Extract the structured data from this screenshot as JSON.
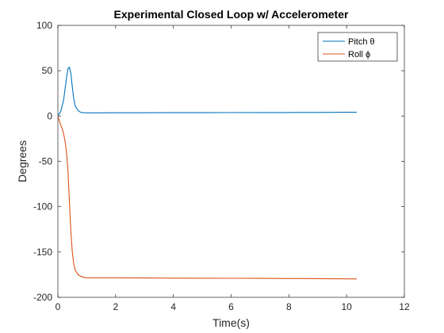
{
  "chart_data": {
    "type": "line",
    "title": "Experimental Closed Loop w/ Accelerometer",
    "xlabel": "Time(s)",
    "ylabel": "Degrees",
    "xlim": [
      0,
      12
    ],
    "ylim": [
      -200,
      100
    ],
    "xticks": [
      0,
      2,
      4,
      6,
      8,
      10,
      12
    ],
    "yticks": [
      100,
      50,
      0,
      -50,
      -100,
      -150,
      -200
    ],
    "grid": false,
    "legend_position": "top-right",
    "series": [
      {
        "name": "Pitch θ",
        "color": "#0072BD",
        "x": [
          0,
          0.1,
          0.2,
          0.3,
          0.35,
          0.4,
          0.45,
          0.5,
          0.55,
          0.6,
          0.7,
          0.8,
          0.9,
          1.0,
          1.5,
          2,
          3,
          4,
          5,
          6,
          7,
          8,
          9,
          10,
          10.35
        ],
        "y": [
          0,
          5,
          18,
          42,
          52,
          54,
          47,
          32,
          19,
          11,
          6,
          4,
          3.6,
          3.5,
          3.5,
          3.6,
          3.6,
          3.7,
          3.7,
          3.8,
          3.9,
          3.9,
          4.0,
          4.1,
          4.1
        ]
      },
      {
        "name": "Roll ϕ",
        "color": "#D95319",
        "x": [
          0,
          0.05,
          0.1,
          0.15,
          0.2,
          0.25,
          0.3,
          0.35,
          0.4,
          0.45,
          0.5,
          0.55,
          0.6,
          0.7,
          0.8,
          0.9,
          1.0,
          1.5,
          2,
          3,
          4,
          5,
          6,
          7,
          8,
          9,
          10,
          10.35
        ],
        "y": [
          0,
          -5,
          -10,
          -14,
          -20,
          -28,
          -40,
          -60,
          -95,
          -128,
          -150,
          -163,
          -170,
          -175,
          -177,
          -178,
          -178.5,
          -178.5,
          -178.5,
          -178.7,
          -178.8,
          -178.9,
          -179.0,
          -179.1,
          -179.3,
          -179.4,
          -179.6,
          -179.7
        ]
      }
    ]
  }
}
